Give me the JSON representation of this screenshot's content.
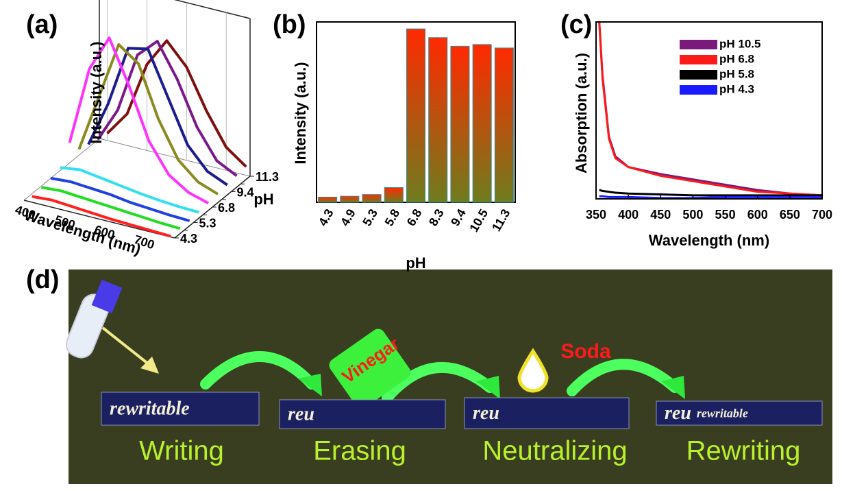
{
  "chart_data": [
    {
      "type": "waterfall3d",
      "panel_label": "(a)",
      "xlabel": "Wavelength (nm)",
      "ylabel": "Intensity (a.u.)",
      "zlabel": "pH",
      "x": [
        400,
        450,
        500,
        550,
        600,
        650,
        700,
        750
      ],
      "xlim": [
        380,
        760
      ],
      "xticks": [
        400,
        500,
        600,
        700
      ],
      "categories": [
        "4.3",
        null,
        "5.3",
        null,
        "6.8",
        null,
        "9.4",
        null,
        "11.3"
      ],
      "ylim": [
        0,
        110
      ],
      "series": [
        {
          "color": "#ff2020",
          "values": [
            4,
            5,
            4,
            3,
            2,
            1.5,
            1,
            0.5
          ]
        },
        {
          "color": "#22dd22",
          "values": [
            5,
            6,
            5,
            4,
            3,
            2,
            1,
            0.5
          ]
        },
        {
          "color": "#2040e0",
          "values": [
            6,
            7,
            6,
            5,
            3,
            2,
            1,
            0.5
          ]
        },
        {
          "color": "#33e0f0",
          "values": [
            8,
            10,
            8,
            6,
            4,
            2.5,
            1.5,
            1
          ]
        },
        {
          "color": "#ff33ff",
          "values": [
            20,
            75,
            100,
            70,
            35,
            15,
            6,
            2
          ]
        },
        {
          "color": "#8a8a1e",
          "values": [
            10,
            50,
            90,
            80,
            45,
            20,
            8,
            3
          ]
        },
        {
          "color": "#1c1c8c",
          "values": [
            8,
            40,
            82,
            85,
            55,
            25,
            10,
            4
          ]
        },
        {
          "color": "#7a1a8a",
          "values": [
            6,
            30,
            72,
            85,
            62,
            32,
            12,
            5
          ]
        },
        {
          "color": "#801010",
          "values": [
            5,
            22,
            60,
            80,
            65,
            38,
            16,
            6
          ]
        }
      ]
    },
    {
      "type": "bar",
      "panel_label": "(b)",
      "xlabel": "pH",
      "ylabel": "Intensity (a.u.)",
      "categories": [
        "4.3",
        "4.9",
        "5.3",
        "5.8",
        "6.8",
        "8.3",
        "9.4",
        "10.5",
        "11.3"
      ],
      "values": [
        3,
        3.5,
        4.5,
        8.5,
        100,
        95,
        90,
        91,
        89
      ],
      "ylim": [
        0,
        104
      ],
      "color_top": "#ff2a00",
      "color_bottom": "#6e7c1e",
      "edge_color": "#3a8fa0"
    },
    {
      "type": "line",
      "panel_label": "(c)",
      "xlabel": "Wavelength (nm)",
      "ylabel": "Absorption (a.u.)",
      "x": [
        355,
        360,
        370,
        380,
        400,
        450,
        500,
        550,
        600,
        650,
        700
      ],
      "xlim": [
        350,
        700
      ],
      "xticks": [
        350,
        400,
        450,
        500,
        550,
        600,
        650,
        700
      ],
      "ylim": [
        0,
        100
      ],
      "series": [
        {
          "name": "pH 10.5",
          "color": "#7a1a7a",
          "values": [
            100,
            70,
            35,
            24,
            18,
            14,
            11,
            8,
            5,
            3,
            2
          ]
        },
        {
          "name": "pH 6.8",
          "color": "#ff1a1a",
          "values": [
            100,
            68,
            34,
            23,
            18,
            13,
            10,
            7,
            4,
            3,
            2
          ]
        },
        {
          "name": "pH 5.8",
          "color": "#000000",
          "values": [
            5,
            4.5,
            4,
            3.5,
            3,
            2.5,
            2,
            2,
            2,
            2,
            2
          ]
        },
        {
          "name": "pH 4.3",
          "color": "#1a1aff",
          "values": [
            1.5,
            1.5,
            1,
            1,
            1,
            0.5,
            0.5,
            1,
            1,
            1,
            1
          ]
        }
      ]
    }
  ],
  "panel_d": {
    "panel_label": "(d)",
    "steps": [
      "Writing",
      "Erasing",
      "Neutralizing",
      "Rewriting"
    ],
    "bottle_label": "Vinegar",
    "drop_label": "Soda",
    "samples": [
      [
        "rewritable"
      ],
      [
        "reu"
      ],
      [
        "reu"
      ],
      [
        "reu",
        "rewritable"
      ]
    ]
  }
}
